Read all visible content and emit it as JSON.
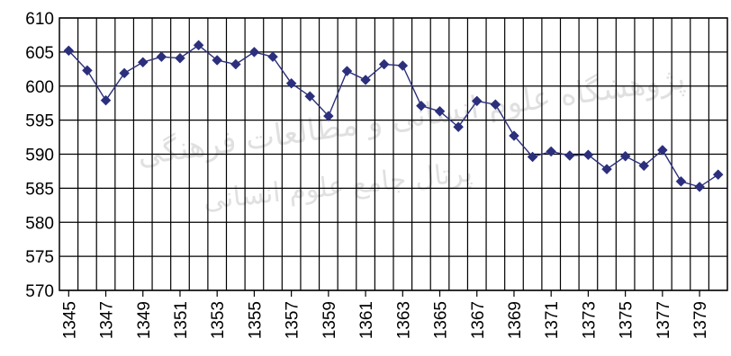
{
  "chart_data": {
    "type": "line",
    "title": "",
    "xlabel": "",
    "ylabel": "",
    "ylim": [
      570,
      610
    ],
    "yticks": [
      570,
      575,
      580,
      585,
      590,
      595,
      600,
      605,
      610
    ],
    "x": [
      1345,
      1346,
      1347,
      1348,
      1349,
      1350,
      1351,
      1352,
      1353,
      1354,
      1355,
      1356,
      1357,
      1358,
      1359,
      1360,
      1361,
      1362,
      1363,
      1364,
      1365,
      1366,
      1367,
      1368,
      1369,
      1370,
      1371,
      1372,
      1373,
      1374,
      1375,
      1376,
      1377,
      1378,
      1379,
      1380
    ],
    "xtick_labels": [
      "1345",
      "1347",
      "1349",
      "1351",
      "1353",
      "1355",
      "1357",
      "1359",
      "1361",
      "1363",
      "1365",
      "1367",
      "1369",
      "1371",
      "1373",
      "1375",
      "1377",
      "1379"
    ],
    "series": [
      {
        "values": [
          605.2,
          602.3,
          597.9,
          601.9,
          603.5,
          604.3,
          604.1,
          606.0,
          603.8,
          603.2,
          605.0,
          604.3,
          600.4,
          598.5,
          595.6,
          602.2,
          600.9,
          603.2,
          603.0,
          597.1,
          596.3,
          594.0,
          597.8,
          597.3,
          592.7,
          589.6,
          590.4,
          589.8,
          589.9,
          587.8,
          589.7,
          588.3,
          590.6,
          586.0,
          585.2,
          587.0
        ],
        "color": "#2b2f7c"
      }
    ],
    "grid": true,
    "legend": "none"
  },
  "watermark": {
    "line1": "پژوهشگاه علوم انسانی و مطالعات فرهنگی",
    "line2": "پرتال جامع علوم انسانی"
  }
}
